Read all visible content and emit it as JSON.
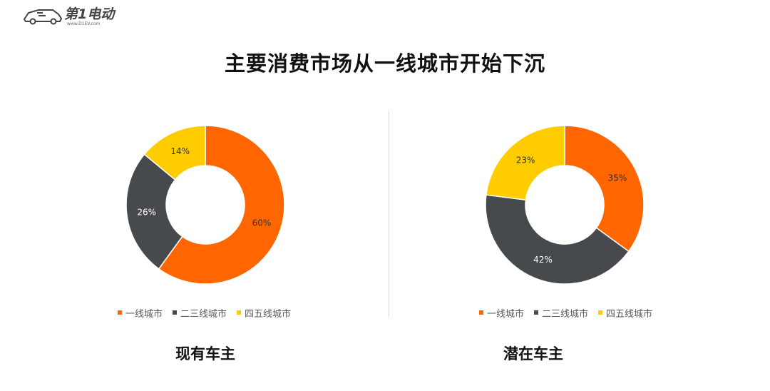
{
  "logo": {
    "text": "第1电动",
    "subtext": "www.D1EV.com"
  },
  "title": "主要消费市场从一线城市开始下沉",
  "colors": {
    "tier1": "#ff6600",
    "tier23": "#474a4d",
    "tier45": "#ffcc00"
  },
  "chart_data": [
    {
      "type": "pie",
      "variant": "donut",
      "title": "现有车主",
      "categories": [
        "一线城市",
        "二三线城市",
        "四五线城市"
      ],
      "values": [
        60,
        26,
        14
      ],
      "labels": [
        "60%",
        "26%",
        "14%"
      ],
      "label_colors": [
        "#333333",
        "#ffffff",
        "#333333"
      ],
      "legend_position": "bottom"
    },
    {
      "type": "pie",
      "variant": "donut",
      "title": "潜在车主",
      "categories": [
        "一线城市",
        "二三线城市",
        "四五线城市"
      ],
      "values": [
        35,
        42,
        23
      ],
      "labels": [
        "35%",
        "42%",
        "23%"
      ],
      "label_colors": [
        "#333333",
        "#ffffff",
        "#333333"
      ],
      "legend_position": "bottom"
    }
  ]
}
